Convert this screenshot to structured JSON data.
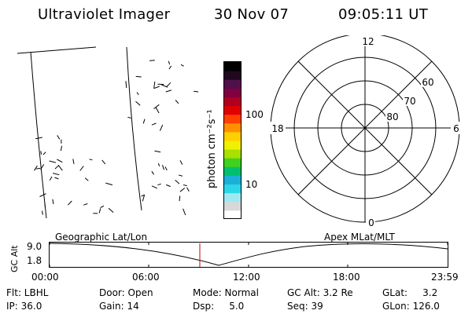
{
  "header": {
    "title": "Ultraviolet Imager",
    "date": "30 Nov 07",
    "time": "09:05:11 UT"
  },
  "colorbar": {
    "label": "photon cm⁻²s⁻¹",
    "ticks": [
      "100",
      "10"
    ],
    "colors": [
      "#ffffff",
      "#d8d8d8",
      "#9fe8f0",
      "#2bd7e6",
      "#1cb0d8",
      "#00c070",
      "#40d020",
      "#a8e000",
      "#f0f000",
      "#ffd000",
      "#ff9000",
      "#ff4000",
      "#e00000",
      "#b00020",
      "#800040",
      "#50104a",
      "#200820",
      "#000000"
    ]
  },
  "polar": {
    "mlt_labels": {
      "top": "12",
      "left": "18",
      "right": "6",
      "bottom": "0"
    },
    "lat_labels": [
      "60",
      "70",
      "80"
    ]
  },
  "timeline": {
    "left_label": "Geographic Lat/Lon",
    "right_label": "Apex MLat/MLT",
    "axis_title": "GC Alt",
    "y_ticks": [
      "9.0",
      "1.8"
    ],
    "x_ticks": [
      "00:00",
      "06:00",
      "12:00",
      "18:00",
      "23:59"
    ]
  },
  "status": {
    "flt": "Flt: LBHL",
    "ip": "IP: 36.0",
    "door": "Door: Open",
    "gain": "Gain: 14",
    "mode": "Mode: Normal",
    "dsp": "Dsp:     5.0",
    "gcalt": "GC Alt: 3.2 Re",
    "seq": "Seq: 39",
    "glat": "GLat:     3.2",
    "glon": "GLon: 126.0"
  }
}
